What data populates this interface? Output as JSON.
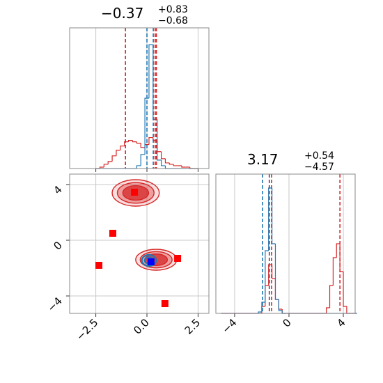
{
  "chart_data": [
    {
      "type": "histogram",
      "title": {
        "value": "−0.37",
        "upper": "+0.83",
        "lower": "−0.68"
      },
      "bins": [
        -2.5,
        -2.3,
        -2.1,
        -1.9,
        -1.7,
        -1.5,
        -1.3,
        -1.1,
        -0.9,
        -0.7,
        -0.5,
        -0.3,
        -0.1,
        0.1,
        0.3,
        0.5,
        0.7,
        0.9,
        1.1,
        1.3,
        1.5,
        1.7,
        1.9,
        2.1,
        2.3,
        2.5
      ],
      "series": [
        {
          "color": "#d62728",
          "values": [
            0,
            0.01,
            0.03,
            0.05,
            0.09,
            0.13,
            0.16,
            0.19,
            0.2,
            0.19,
            0.18,
            0.15,
            0.17,
            0.22,
            0.2,
            0.12,
            0.07,
            0.04,
            0.03,
            0.02,
            0.02,
            0.01,
            0.01,
            0,
            0
          ]
        },
        {
          "color": "#1f77b4",
          "values": [
            0,
            0,
            0,
            0,
            0,
            0,
            0,
            0,
            0,
            0,
            0.02,
            0.1,
            0.5,
            0.88,
            0.35,
            0.06,
            0.02,
            0,
            0,
            0,
            0,
            0,
            0,
            0,
            0
          ]
        }
      ],
      "vlines": [
        {
          "color": "#d62728",
          "values": [
            -1.05,
            0.4,
            0.46
          ]
        },
        {
          "color": "#1f77b4",
          "values": [
            0.0,
            0.31
          ]
        }
      ],
      "xlim": [
        -3.78,
        3.03
      ],
      "xticks": [
        -2.5,
        0,
        2.5
      ],
      "xticklabels": false,
      "ylim": [
        0,
        1
      ],
      "grid": true
    },
    {
      "type": "scatter",
      "series": [
        {
          "color": "#ff0000",
          "x": [
            -0.61,
            -1.67,
            -2.35,
            1.5,
            0.88
          ],
          "y": [
            3.45,
            0.5,
            -1.8,
            -1.3,
            -4.55
          ]
        },
        {
          "color": "#0000ff",
          "x": [
            0.2
          ],
          "y": [
            -1.55
          ]
        }
      ],
      "contours": [
        {
          "color": "#d62728",
          "x": -0.55,
          "y": 3.4,
          "rx": 1.15,
          "ry": 0.95
        },
        {
          "color": "#d62728",
          "x": 0.45,
          "y": -1.4,
          "rx": 1.0,
          "ry": 0.75
        },
        {
          "color": "#1f77b4",
          "x": 0.1,
          "y": -1.45,
          "rx": 0.35,
          "ry": 0.4
        }
      ],
      "xlim": [
        -3.78,
        3.03
      ],
      "xticks": [
        {
          "value": -2.5,
          "label": "−2.5"
        },
        {
          "value": 0,
          "label": "0.0"
        },
        2.5
      ],
      "xticklabels": true,
      "ylim": [
        -5.25,
        4.75
      ],
      "yticks": [
        {
          "value": -4,
          "label": "−4"
        },
        0,
        4
      ],
      "grid": true
    },
    {
      "type": "histogram",
      "title": {
        "value": "3.17",
        "upper": "+0.54",
        "lower": "−4.57"
      },
      "bins": [
        -5,
        -4.75,
        -4.5,
        -4.25,
        -4,
        -3.75,
        -3.5,
        -3.25,
        -3,
        -2.75,
        -2.5,
        -2.25,
        -2,
        -1.75,
        -1.5,
        -1.25,
        -1,
        -0.75,
        -0.5,
        -0.25,
        0,
        0.25,
        0.5,
        0.75,
        1,
        1.25,
        1.5,
        1.75,
        2,
        2.25,
        2.5,
        2.75,
        3,
        3.25,
        3.5,
        3.75,
        4,
        4.25,
        4.5,
        4.75,
        5
      ],
      "series": [
        {
          "color": "#d62728",
          "values": [
            0,
            0,
            0,
            0,
            0,
            0,
            0,
            0,
            0,
            0,
            0,
            0,
            0.05,
            0.2,
            0.35,
            0.25,
            0.1,
            0.03,
            0,
            0,
            0,
            0,
            0,
            0,
            0,
            0,
            0,
            0,
            0,
            0,
            0,
            0.04,
            0.2,
            0.4,
            0.5,
            0.3,
            0.05,
            0,
            0,
            0
          ]
        },
        {
          "color": "#1f77b4",
          "values": [
            0,
            0,
            0,
            0,
            0,
            0,
            0,
            0,
            0,
            0,
            0,
            0.01,
            0.08,
            0.45,
            0.9,
            0.5,
            0.1,
            0.02,
            0,
            0,
            0,
            0,
            0,
            0,
            0,
            0,
            0,
            0,
            0,
            0,
            0,
            0,
            0,
            0,
            0,
            0,
            0,
            0,
            0,
            0
          ]
        }
      ],
      "vlines": [
        {
          "color": "#d62728",
          "values": [
            -1.45,
            -1.28,
            3.75
          ]
        },
        {
          "color": "#1f77b4",
          "values": [
            -1.95,
            -1.44
          ]
        }
      ],
      "xlim": [
        -5.38,
        4.87
      ],
      "xticks": [
        {
          "value": -4,
          "label": "−4"
        },
        0,
        4
      ],
      "xticklabels": true,
      "ylim": [
        0,
        1
      ],
      "grid": true
    }
  ]
}
